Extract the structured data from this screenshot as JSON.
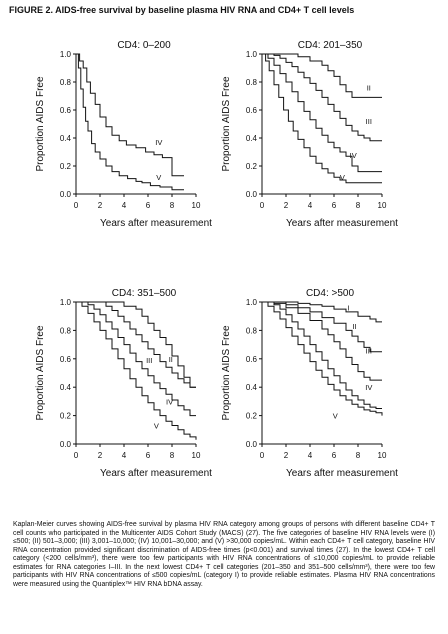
{
  "figure": {
    "title": "FIGURE 2. AIDS-free survival by baseline plasma HIV RNA and CD4+ T cell levels",
    "caption": "Kaplan-Meier curves showing AIDS-free survival by plasma HIV RNA category among groups of persons with different baseline CD4+ T cell counts who participated in the Multicenter AIDS Cohort Study (MACS) (27). The five categories of baseline HIV RNA levels were (I) ≤500; (II) 501–3,000; (III) 3,001–10,000; (IV) 10,001–30,000; and (V) >30,000 copies/mL. Within each CD4+ T cell category, baseline HIV RNA concentration provided significant discrimination of AIDS-free times (p<0.001) and survival times (27). In the lowest CD4+ T cell category (<200 cells/mm³), there were too few participants with HIV RNA concentrations of ≤10,000 copies/mL to provide reliable estimates for RNA categories I–III. In the next lowest CD4+ T cell categories (201–350 and 351–500 cells/mm³), there were too few participants with HIV RNA concentrations of ≤500 copies/mL (category I) to provide reliable estimates. Plasma HIV RNA concentrations were measured using the Quantiplex™ HIV RNA bDNA assay."
  },
  "chart_data": [
    {
      "type": "line",
      "title": "CD4: 0–200",
      "xlabel": "Years after measurement",
      "ylabel": "Proportion AIDS Free",
      "xlim": [
        0,
        10
      ],
      "ylim": [
        0,
        1.0
      ],
      "xticks": [
        "0",
        "2",
        "4",
        "6",
        "8",
        "10"
      ],
      "yticks": [
        "0.0",
        "0.2",
        "0.4",
        "0.6",
        "0.8",
        "1.0"
      ],
      "grid": false,
      "series": [
        {
          "name": "IV",
          "label_pos": [
            6.9,
            0.37
          ],
          "x": [
            0,
            0.3,
            0.6,
            0.9,
            1.2,
            1.6,
            2.0,
            2.5,
            3.0,
            3.6,
            4.2,
            5.0,
            5.8,
            6.5,
            7.2,
            8.0,
            9.0
          ],
          "y": [
            1.0,
            0.95,
            0.9,
            0.8,
            0.72,
            0.64,
            0.55,
            0.48,
            0.42,
            0.38,
            0.35,
            0.33,
            0.3,
            0.28,
            0.26,
            0.13,
            0.13
          ]
        },
        {
          "name": "V",
          "label_pos": [
            6.9,
            0.12
          ],
          "x": [
            0,
            0.2,
            0.4,
            0.6,
            0.8,
            1.0,
            1.3,
            1.6,
            2.0,
            2.5,
            3.0,
            3.6,
            4.3,
            5.0,
            5.5,
            6.2,
            7.0,
            8.0,
            9.0
          ],
          "y": [
            1.0,
            0.9,
            0.75,
            0.62,
            0.52,
            0.45,
            0.36,
            0.3,
            0.25,
            0.2,
            0.16,
            0.13,
            0.11,
            0.09,
            0.08,
            0.06,
            0.05,
            0.03,
            0.03
          ]
        }
      ]
    },
    {
      "type": "line",
      "title": "CD4: 201–350",
      "xlabel": "Years after measurement",
      "ylabel": "Proportion AIDS Free",
      "xlim": [
        0,
        10
      ],
      "ylim": [
        0,
        1.0
      ],
      "xticks": [
        "0",
        "2",
        "4",
        "6",
        "8",
        "10"
      ],
      "yticks": [
        "0.0",
        "0.2",
        "0.4",
        "0.6",
        "0.8",
        "1.0"
      ],
      "grid": false,
      "series": [
        {
          "name": "II",
          "label_pos": [
            8.9,
            0.76
          ],
          "x": [
            0,
            2.0,
            3.0,
            4.0,
            5.0,
            5.5,
            6.0,
            6.5,
            7.0,
            7.5,
            8.0,
            10.0
          ],
          "y": [
            1.0,
            1.0,
            0.98,
            0.95,
            0.92,
            0.88,
            0.84,
            0.78,
            0.73,
            0.69,
            0.69,
            0.69
          ]
        },
        {
          "name": "III",
          "label_pos": [
            8.9,
            0.52
          ],
          "x": [
            0,
            1.0,
            1.5,
            2.0,
            2.5,
            3.0,
            3.5,
            4.0,
            4.5,
            5.0,
            5.5,
            6.0,
            6.5,
            7.0,
            7.5,
            8.0,
            8.5,
            9.0,
            10.0
          ],
          "y": [
            1.0,
            0.99,
            0.97,
            0.94,
            0.91,
            0.87,
            0.83,
            0.79,
            0.74,
            0.69,
            0.64,
            0.59,
            0.54,
            0.49,
            0.45,
            0.42,
            0.4,
            0.38,
            0.38
          ]
        },
        {
          "name": "IV",
          "label_pos": [
            7.6,
            0.28
          ],
          "x": [
            0,
            0.5,
            1.0,
            1.5,
            2.0,
            2.5,
            3.0,
            3.5,
            4.0,
            4.5,
            5.0,
            5.5,
            6.0,
            6.5,
            7.0,
            7.5,
            8.0,
            9.0,
            10.0
          ],
          "y": [
            1.0,
            0.97,
            0.92,
            0.86,
            0.8,
            0.73,
            0.66,
            0.59,
            0.53,
            0.47,
            0.42,
            0.37,
            0.33,
            0.3,
            0.27,
            0.2,
            0.16,
            0.16,
            0.16
          ]
        },
        {
          "name": "V",
          "label_pos": [
            6.7,
            0.12
          ],
          "x": [
            0,
            0.3,
            0.6,
            1.0,
            1.4,
            1.8,
            2.2,
            2.6,
            3.0,
            3.5,
            4.0,
            4.5,
            5.0,
            5.5,
            6.0,
            6.5,
            7.0,
            7.5,
            8.0,
            10.0
          ],
          "y": [
            1.0,
            0.95,
            0.88,
            0.78,
            0.69,
            0.6,
            0.52,
            0.45,
            0.39,
            0.33,
            0.27,
            0.22,
            0.18,
            0.15,
            0.12,
            0.1,
            0.08,
            0.08,
            0.08,
            0.08
          ]
        }
      ]
    },
    {
      "type": "line",
      "title": "CD4: 351–500",
      "xlabel": "Years after measurement",
      "ylabel": "Proportion AIDS Free",
      "xlim": [
        0,
        10
      ],
      "ylim": [
        0,
        1.0
      ],
      "xticks": [
        "0",
        "2",
        "4",
        "6",
        "8",
        "10"
      ],
      "yticks": [
        "0.0",
        "0.2",
        "0.4",
        "0.6",
        "0.8",
        "1.0"
      ],
      "grid": false,
      "series": [
        {
          "name": "II",
          "label_pos": [
            7.9,
            0.6
          ],
          "x": [
            0,
            3.0,
            4.0,
            5.0,
            5.5,
            6.0,
            6.5,
            7.0,
            7.5,
            8.0,
            8.5,
            9.0,
            9.5,
            10.0
          ],
          "y": [
            1.0,
            1.0,
            0.97,
            0.95,
            0.9,
            0.85,
            0.8,
            0.75,
            0.7,
            0.62,
            0.55,
            0.47,
            0.4,
            0.4
          ]
        },
        {
          "name": "III",
          "label_pos": [
            6.1,
            0.59
          ],
          "x": [
            0,
            2.0,
            2.5,
            3.0,
            3.5,
            4.0,
            4.5,
            5.0,
            5.5,
            6.0,
            6.5,
            7.0,
            7.5,
            8.0,
            8.5,
            9.0,
            9.5,
            10.0
          ],
          "y": [
            1.0,
            1.0,
            0.97,
            0.94,
            0.9,
            0.86,
            0.81,
            0.77,
            0.72,
            0.67,
            0.63,
            0.58,
            0.54,
            0.5,
            0.46,
            0.43,
            0.4,
            0.4
          ]
        },
        {
          "name": "IV",
          "label_pos": [
            7.8,
            0.3
          ],
          "x": [
            0,
            1.0,
            1.5,
            2.0,
            2.5,
            3.0,
            3.5,
            4.0,
            4.5,
            5.0,
            5.5,
            6.0,
            6.5,
            7.0,
            7.5,
            8.0,
            8.5,
            9.0,
            9.5,
            10.0
          ],
          "y": [
            1.0,
            0.98,
            0.95,
            0.91,
            0.86,
            0.81,
            0.75,
            0.7,
            0.64,
            0.58,
            0.53,
            0.48,
            0.43,
            0.39,
            0.35,
            0.31,
            0.27,
            0.24,
            0.2,
            0.2
          ]
        },
        {
          "name": "V",
          "label_pos": [
            6.7,
            0.13
          ],
          "x": [
            0,
            0.5,
            1.0,
            1.5,
            2.0,
            2.5,
            3.0,
            3.5,
            4.0,
            4.5,
            5.0,
            5.5,
            6.0,
            6.5,
            7.0,
            7.5,
            8.0,
            8.5,
            9.0,
            9.5,
            10.0
          ],
          "y": [
            1.0,
            0.97,
            0.92,
            0.86,
            0.8,
            0.74,
            0.67,
            0.6,
            0.53,
            0.46,
            0.4,
            0.34,
            0.29,
            0.24,
            0.2,
            0.16,
            0.13,
            0.1,
            0.07,
            0.05,
            0.03
          ]
        }
      ]
    },
    {
      "type": "line",
      "title": "CD4: >500",
      "xlabel": "Years after measurement",
      "ylabel": "Proportion AIDS Free",
      "xlim": [
        0,
        10
      ],
      "ylim": [
        0,
        1.0
      ],
      "xticks": [
        "0",
        "2",
        "4",
        "6",
        "8",
        "10"
      ],
      "yticks": [
        "0.0",
        "0.2",
        "0.4",
        "0.6",
        "0.8",
        "1.0"
      ],
      "grid": false,
      "series": [
        {
          "name": "I",
          "label_pos": [
            7.2,
            0.96
          ],
          "x": [
            0,
            2.0,
            3.0,
            4.0,
            5.0,
            6.0,
            7.0,
            8.0,
            9.0,
            9.5,
            10.0
          ],
          "y": [
            1.0,
            1.0,
            0.99,
            0.98,
            0.97,
            0.95,
            0.93,
            0.9,
            0.88,
            0.86,
            0.86
          ]
        },
        {
          "name": "II",
          "label_pos": [
            7.7,
            0.83
          ],
          "x": [
            0,
            1.0,
            2.0,
            3.0,
            4.0,
            5.0,
            6.0,
            7.0,
            7.5,
            8.0,
            8.5,
            9.0,
            9.5,
            10.0
          ],
          "y": [
            1.0,
            1.0,
            0.98,
            0.96,
            0.93,
            0.89,
            0.85,
            0.8,
            0.76,
            0.72,
            0.68,
            0.65,
            0.65,
            0.65
          ]
        },
        {
          "name": "III",
          "label_pos": [
            8.9,
            0.66
          ],
          "x": [
            0,
            1.0,
            2.0,
            3.0,
            4.0,
            5.0,
            5.5,
            6.0,
            6.5,
            7.0,
            7.5,
            8.0,
            8.5,
            9.0,
            9.5,
            10.0
          ],
          "y": [
            1.0,
            0.99,
            0.96,
            0.92,
            0.87,
            0.81,
            0.77,
            0.72,
            0.67,
            0.61,
            0.56,
            0.51,
            0.47,
            0.45,
            0.45,
            0.45
          ]
        },
        {
          "name": "IV",
          "label_pos": [
            8.9,
            0.4
          ],
          "x": [
            0,
            1.0,
            1.5,
            2.0,
            2.5,
            3.0,
            3.5,
            4.0,
            4.5,
            5.0,
            5.5,
            6.0,
            6.5,
            7.0,
            7.5,
            8.0,
            8.5,
            9.0,
            9.5,
            10.0
          ],
          "y": [
            1.0,
            0.98,
            0.95,
            0.91,
            0.86,
            0.81,
            0.76,
            0.7,
            0.65,
            0.59,
            0.53,
            0.48,
            0.43,
            0.38,
            0.34,
            0.31,
            0.28,
            0.26,
            0.25,
            0.25
          ]
        },
        {
          "name": "V",
          "label_pos": [
            6.1,
            0.2
          ],
          "x": [
            0,
            0.5,
            1.0,
            1.5,
            2.0,
            2.5,
            3.0,
            3.5,
            4.0,
            4.5,
            5.0,
            5.5,
            6.0,
            6.5,
            7.0,
            7.5,
            8.0,
            8.5,
            9.0,
            9.5,
            10.0
          ],
          "y": [
            1.0,
            0.97,
            0.93,
            0.88,
            0.82,
            0.76,
            0.7,
            0.64,
            0.58,
            0.52,
            0.47,
            0.42,
            0.38,
            0.34,
            0.31,
            0.28,
            0.26,
            0.24,
            0.23,
            0.22,
            0.2
          ]
        }
      ]
    }
  ]
}
